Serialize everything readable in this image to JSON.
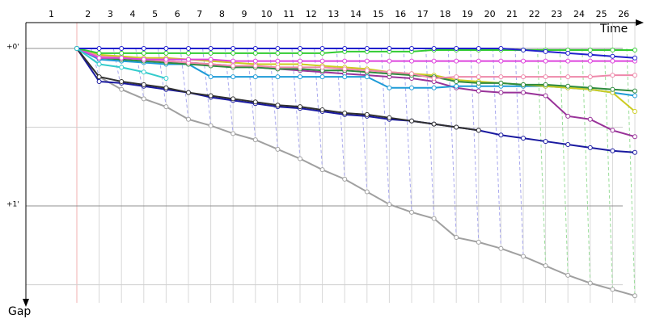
{
  "chart_data": {
    "type": "line",
    "x_label": "Time",
    "y_label": "Gap",
    "categories": [
      "1",
      "2",
      "3",
      "4",
      "5",
      "6",
      "7",
      "8",
      "9",
      "10",
      "11",
      "12",
      "13",
      "14",
      "15",
      "16",
      "17",
      "18",
      "19",
      "20",
      "21",
      "22",
      "23",
      "24",
      "25",
      "26"
    ],
    "ylim": [
      -0.164,
      1.615
    ],
    "inverted_y": true,
    "yticks": [
      {
        "value": 0,
        "label": "+0'"
      },
      {
        "value": 1,
        "label": "+1'"
      }
    ],
    "minor_yticks": [
      0.5,
      1.5
    ],
    "grid": true,
    "series": [
      {
        "color": "#a0a0a0",
        "values": [
          0,
          0.18,
          0.26,
          0.32,
          0.37,
          0.45,
          0.49,
          0.54,
          0.58,
          0.64,
          0.7,
          0.77,
          0.83,
          0.91,
          0.99,
          1.04,
          1.08,
          1.2,
          1.23,
          1.27,
          1.32,
          1.38,
          1.44,
          1.49,
          1.53,
          1.57
        ]
      },
      {
        "color": "#1a1aa0",
        "values": [
          0,
          0.21,
          0.22,
          0.24,
          0.26,
          0.28,
          0.31,
          0.33,
          0.35,
          0.37,
          0.38,
          0.4,
          0.42,
          0.43,
          0.45,
          0.46,
          0.48,
          0.5,
          0.52,
          0.55,
          0.57,
          0.59,
          0.61,
          0.63,
          0.65,
          0.66
        ]
      },
      {
        "color": "#303030",
        "values": [
          0,
          0.18,
          0.21,
          0.23,
          0.25,
          0.28,
          0.3,
          0.32,
          0.34,
          0.36,
          0.37,
          0.39,
          0.41,
          0.42,
          0.44,
          0.46,
          0.48,
          0.5,
          0.52,
          null,
          null,
          null,
          null,
          null,
          null,
          null
        ]
      },
      {
        "color": "#993399",
        "values": [
          0,
          0.05,
          0.06,
          0.07,
          0.08,
          0.09,
          0.1,
          0.11,
          0.12,
          0.13,
          0.14,
          0.15,
          0.16,
          0.17,
          0.18,
          0.19,
          0.21,
          0.25,
          0.27,
          0.28,
          0.28,
          0.3,
          0.43,
          0.45,
          0.52,
          0.56
        ]
      },
      {
        "color": "#1e9bd7",
        "values": [
          0,
          0.07,
          0.08,
          0.09,
          0.1,
          0.1,
          0.18,
          0.18,
          0.18,
          0.18,
          0.18,
          0.18,
          0.18,
          0.18,
          0.25,
          0.25,
          0.25,
          0.24,
          0.24,
          0.24,
          0.24,
          0.24,
          0.25,
          0.26,
          0.28,
          0.3
        ]
      },
      {
        "color": "#cccc22",
        "values": [
          0,
          0.04,
          0.05,
          0.06,
          0.06,
          0.07,
          0.08,
          0.09,
          0.1,
          0.1,
          0.1,
          0.11,
          0.12,
          0.13,
          0.15,
          0.16,
          0.17,
          0.2,
          0.21,
          0.22,
          0.23,
          0.24,
          0.25,
          0.26,
          0.28,
          0.4
        ]
      },
      {
        "color": "#2e8b3e",
        "values": [
          0,
          0.06,
          0.07,
          0.08,
          0.09,
          0.1,
          0.11,
          0.12,
          0.12,
          0.13,
          0.13,
          0.14,
          0.14,
          0.15,
          0.16,
          0.17,
          0.18,
          0.21,
          0.22,
          0.22,
          0.23,
          0.23,
          0.24,
          0.25,
          0.26,
          0.27
        ]
      },
      {
        "color": "#ee88aa",
        "values": [
          0,
          0.05,
          0.06,
          0.07,
          0.08,
          0.09,
          0.1,
          0.11,
          0.11,
          0.12,
          0.12,
          0.12,
          0.13,
          0.14,
          0.15,
          0.16,
          0.19,
          0.18,
          0.18,
          0.18,
          0.18,
          0.18,
          0.18,
          0.18,
          0.17,
          0.17
        ]
      },
      {
        "color": "#dd44dd",
        "values": [
          0,
          0.06,
          0.06,
          0.07,
          0.07,
          0.07,
          0.07,
          0.08,
          0.08,
          0.08,
          0.08,
          0.08,
          0.08,
          0.08,
          0.08,
          0.08,
          0.08,
          0.08,
          0.08,
          0.08,
          0.08,
          0.08,
          0.08,
          0.08,
          0.08,
          0.08
        ]
      },
      {
        "color": "#33cc33",
        "values": [
          0,
          0.03,
          0.03,
          0.03,
          0.03,
          0.03,
          0.03,
          0.03,
          0.03,
          0.03,
          0.03,
          0.03,
          0.02,
          0.02,
          0.02,
          0.02,
          0.01,
          0.01,
          0.01,
          0.01,
          0.01,
          0.01,
          0.01,
          0.01,
          0.01,
          0.01
        ]
      },
      {
        "color": "#2020cc",
        "values": [
          0,
          0,
          0,
          0,
          0,
          0,
          0,
          0,
          0,
          0,
          0,
          0,
          0,
          0,
          0,
          0,
          0,
          0,
          0,
          0,
          0.01,
          0.02,
          0.03,
          0.04,
          0.05,
          0.06
        ]
      },
      {
        "color": "#33cccc",
        "values": [
          0,
          0.1,
          0.12,
          0.15,
          0.19,
          null,
          null,
          null,
          null,
          null,
          null,
          null,
          null,
          null,
          null,
          null,
          null,
          null,
          null,
          null,
          null,
          null,
          null,
          null,
          null,
          null
        ]
      }
    ]
  }
}
